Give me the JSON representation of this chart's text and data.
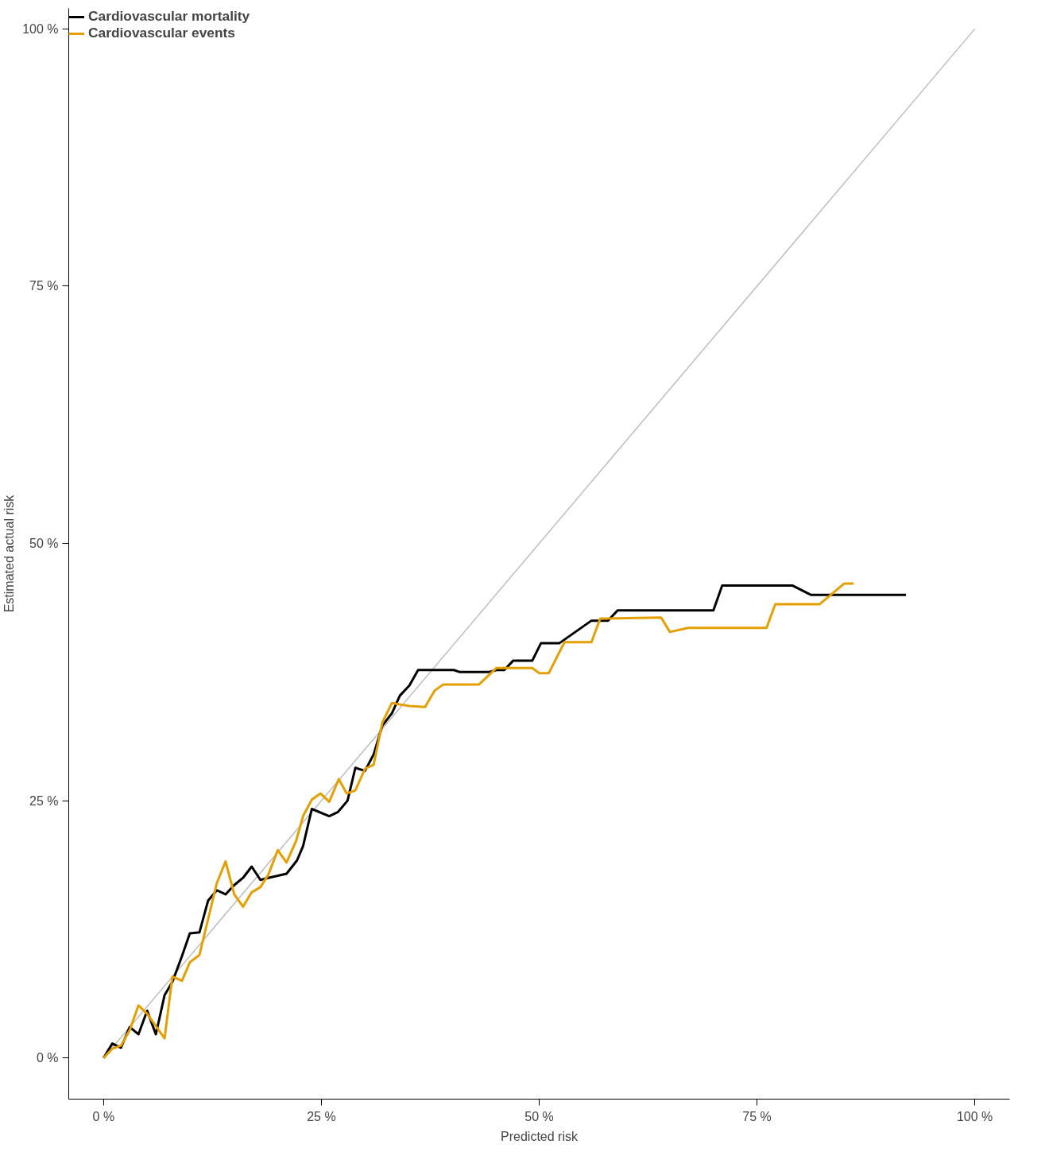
{
  "chart_data": {
    "type": "line",
    "xlabel": "Predicted risk",
    "ylabel": "Estimated actual risk",
    "xlim": [
      -4,
      104
    ],
    "ylim": [
      -4,
      102
    ],
    "xticks": [
      {
        "value": 0,
        "label": "0 %"
      },
      {
        "value": 25,
        "label": "25 %"
      },
      {
        "value": 50,
        "label": "50 %"
      },
      {
        "value": 75,
        "label": "75 %"
      },
      {
        "value": 100,
        "label": "100 %"
      }
    ],
    "yticks": [
      {
        "value": 0,
        "label": "0 %"
      },
      {
        "value": 25,
        "label": "25 %"
      },
      {
        "value": 50,
        "label": "50 %"
      },
      {
        "value": 75,
        "label": "75 %"
      },
      {
        "value": 100,
        "label": "100 %"
      }
    ],
    "grid": false,
    "legend": "top left",
    "marker": "none",
    "line_style": "solid",
    "series": [
      {
        "type": "line",
        "color": "#bebebe",
        "x": [
          0,
          100
        ],
        "values": [
          0,
          100
        ]
      },
      {
        "name": "Cardiovascular mortality",
        "color": "#000000",
        "x": [
          0,
          1.0,
          2.0,
          3.0,
          4.0,
          5.0,
          6.0,
          7.0,
          7.9,
          9.0,
          9.9,
          11.0,
          12.0,
          13.0,
          14.0,
          15.0,
          16.0,
          17.0,
          18.0,
          18.9,
          21.0,
          22.2,
          22.9,
          23.9,
          25.9,
          26.9,
          28.0,
          28.9,
          30.0,
          31.0,
          32.0,
          33.1,
          34.0,
          35.1,
          36.1,
          40.2,
          40.9,
          44.2,
          45.1,
          46.0,
          47.0,
          49.2,
          50.2,
          52.3,
          56.0,
          57.9,
          59.0,
          70.0,
          71.0,
          79.1,
          81.2,
          92.1
        ],
        "values": [
          0,
          1.4,
          1.0,
          3.0,
          2.3,
          4.6,
          2.3,
          6.1,
          7.4,
          9.9,
          12.1,
          12.2,
          15.3,
          16.3,
          15.9,
          16.8,
          17.5,
          18.6,
          17.3,
          17.5,
          17.9,
          19.2,
          20.6,
          24.2,
          23.5,
          23.9,
          25.0,
          28.2,
          27.9,
          29.5,
          32.3,
          33.5,
          35.2,
          36.2,
          37.7,
          37.7,
          37.5,
          37.5,
          37.7,
          37.7,
          38.6,
          38.6,
          40.3,
          40.3,
          42.5,
          42.5,
          43.5,
          43.5,
          45.9,
          45.9,
          45.0,
          45.0
        ]
      },
      {
        "name": "Cardiovascular events",
        "color": "#e69f00",
        "x": [
          0,
          1.0,
          2.0,
          3.0,
          4.0,
          5.0,
          6.0,
          7.0,
          7.9,
          9.0,
          9.9,
          11.0,
          12.0,
          13.0,
          14.0,
          15.0,
          16.0,
          17.0,
          18.0,
          18.9,
          20.0,
          21.0,
          22.1,
          22.9,
          23.9,
          24.9,
          25.9,
          27.0,
          27.9,
          28.9,
          30.0,
          31.0,
          32.0,
          33.1,
          35.1,
          36.9,
          38.0,
          39.0,
          43.1,
          45.1,
          49.2,
          50.0,
          51.1,
          52.9,
          56.0,
          57.0,
          64.0,
          65.0,
          67.1,
          76.1,
          77.1,
          82.2,
          85.0,
          86.1
        ],
        "values": [
          0,
          0.9,
          1.2,
          2.7,
          5.1,
          4.3,
          3.1,
          1.9,
          7.9,
          7.5,
          9.3,
          10.0,
          13.5,
          17.0,
          19.1,
          15.9,
          14.7,
          16.1,
          16.6,
          17.8,
          20.2,
          19.0,
          21.1,
          23.5,
          25.1,
          25.7,
          24.9,
          27.1,
          25.7,
          26.0,
          28.1,
          28.5,
          32.6,
          34.5,
          34.2,
          34.1,
          35.7,
          36.3,
          36.3,
          37.9,
          37.9,
          37.4,
          37.4,
          40.4,
          40.4,
          42.7,
          42.8,
          41.4,
          41.8,
          41.8,
          44.1,
          44.1,
          46.1,
          46.1
        ]
      }
    ]
  }
}
